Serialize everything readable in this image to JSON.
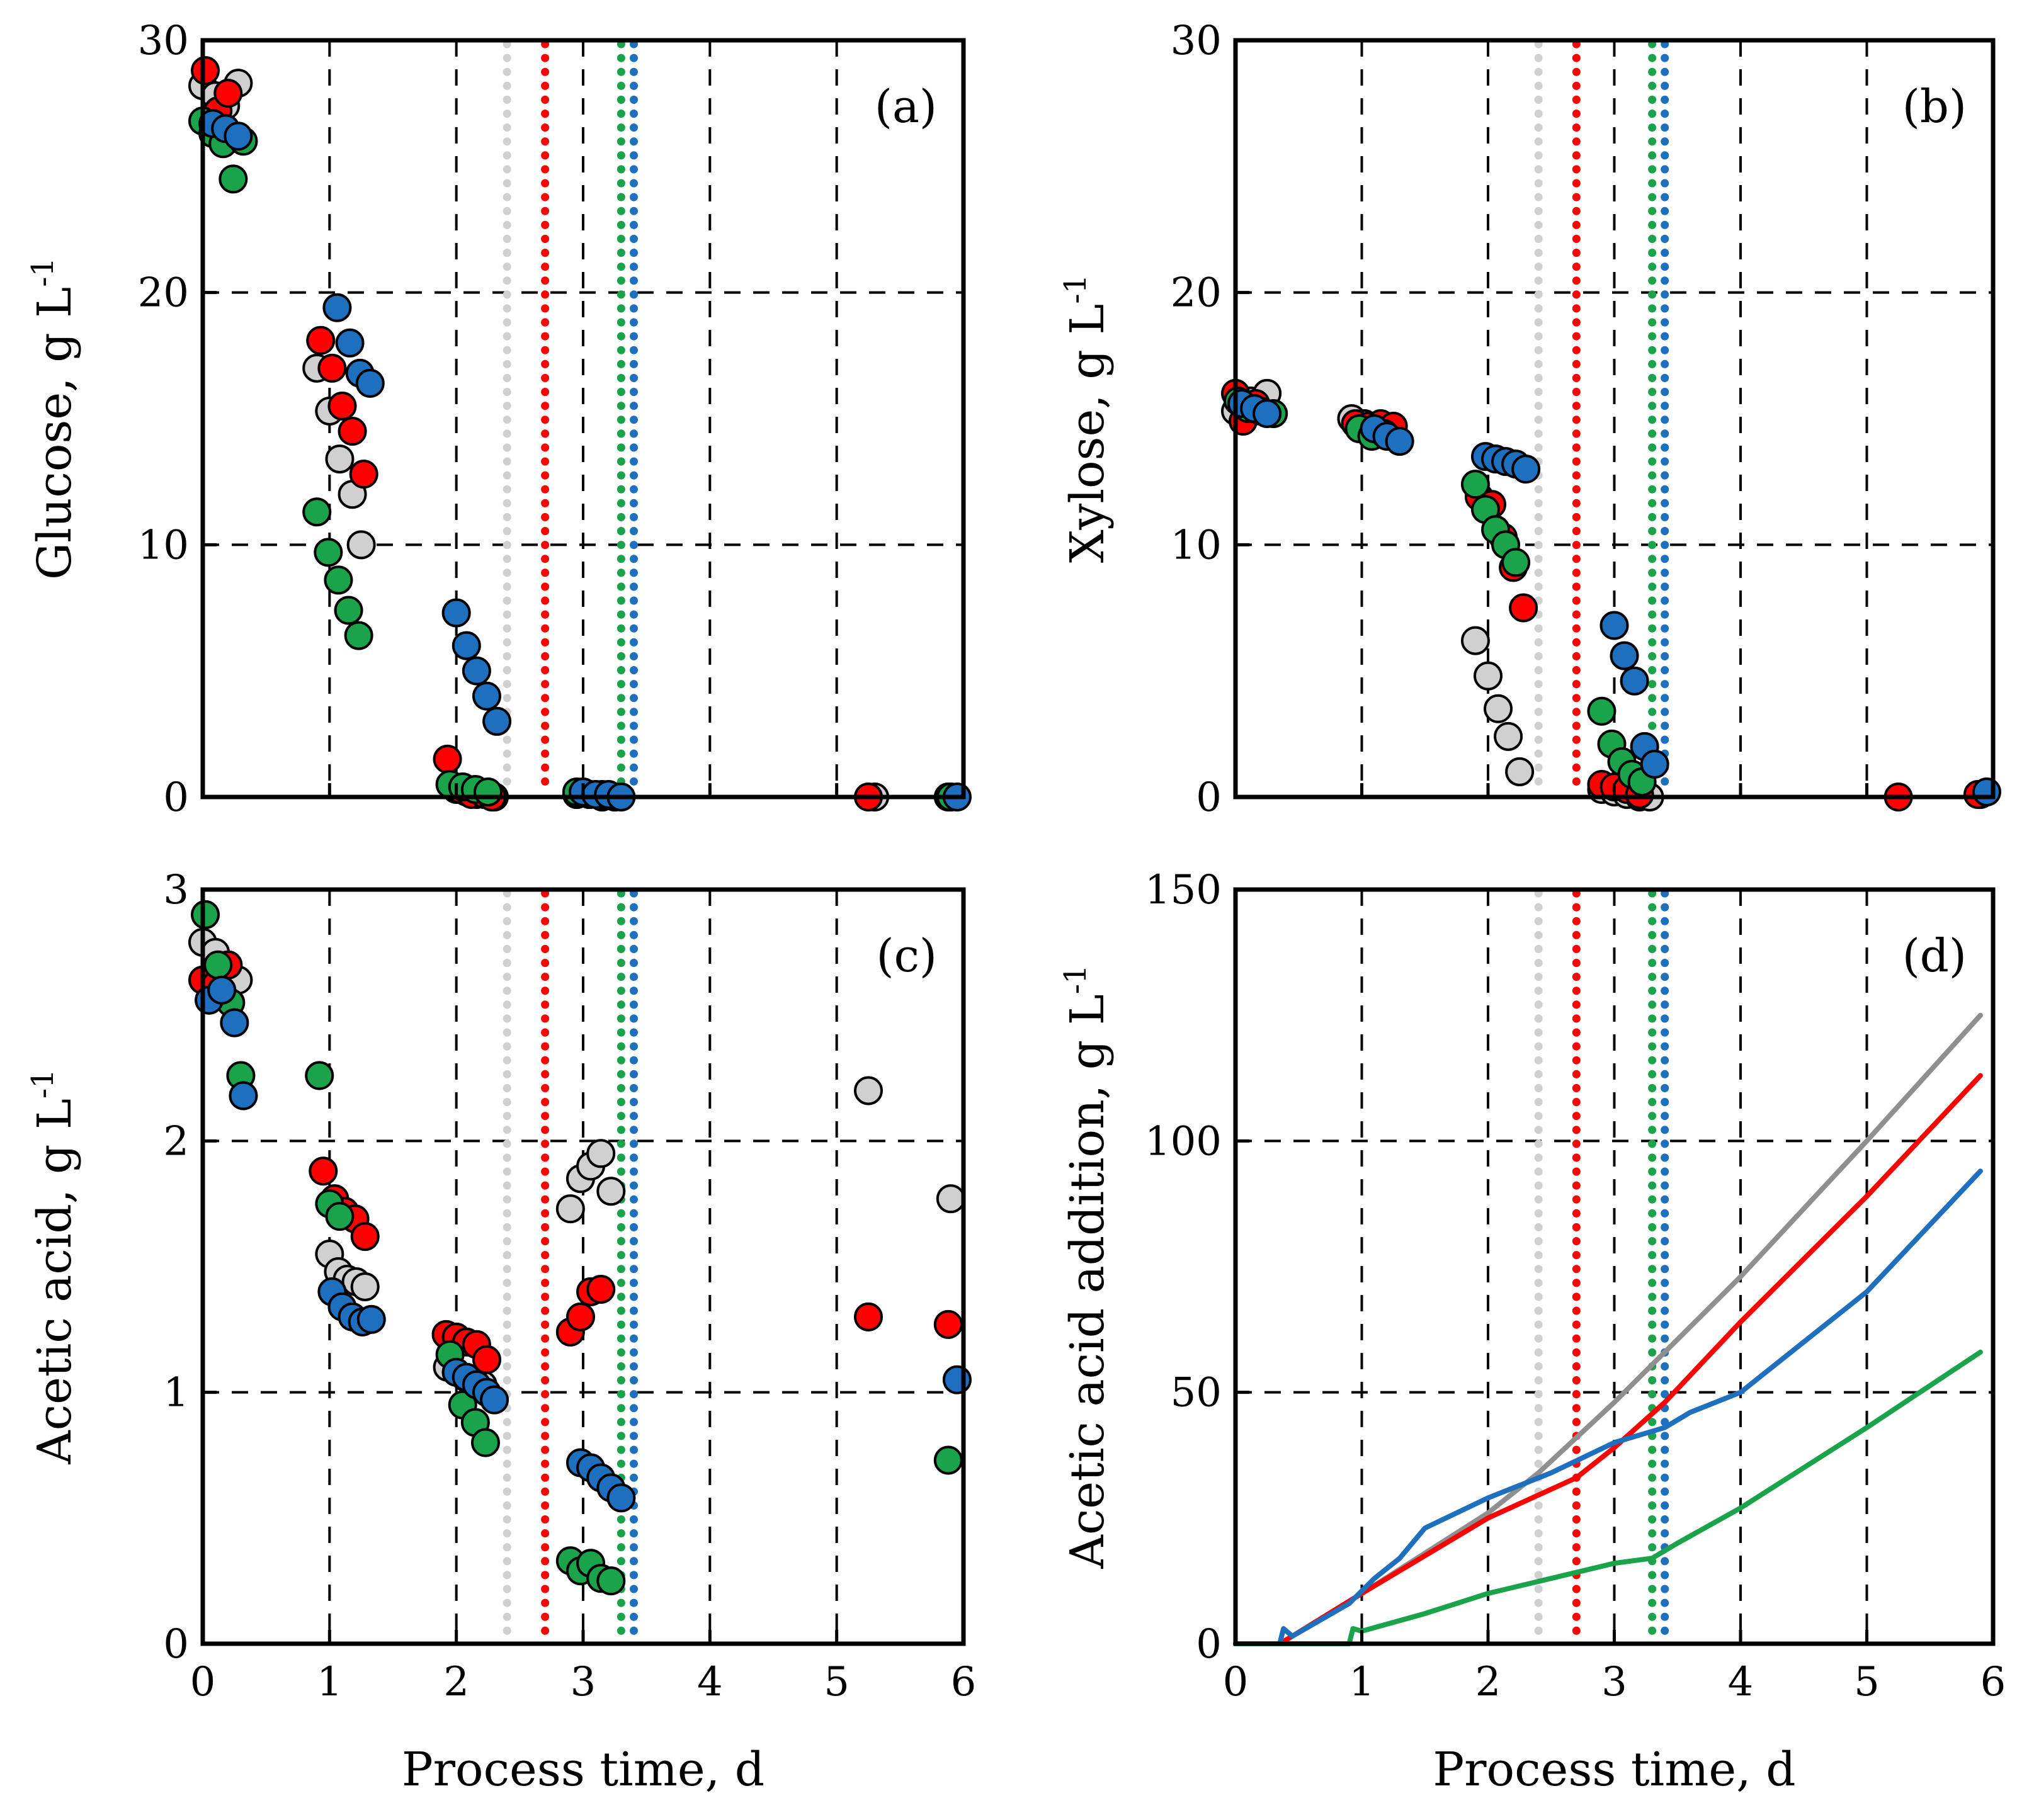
{
  "figure": {
    "colors": {
      "gray_marker": "#d0d0d0",
      "gray_line": "#8f8f8f",
      "red": "#ff0000",
      "green": "#1aa34a",
      "blue": "#1f6fbf"
    }
  },
  "chart_data": [
    {
      "type": "scatter",
      "panel": "(a)",
      "xlabel": "",
      "ylabel": "Glucose, g L",
      "ylabel_sup": "-1",
      "xlim": [
        0,
        6
      ],
      "ylim": [
        0,
        30
      ],
      "xticks": [
        0,
        1,
        2,
        3,
        4,
        5,
        6
      ],
      "yticks": [
        0,
        10,
        20,
        30
      ],
      "show_xtick_labels": false,
      "grid": "dashed",
      "vlines": [
        {
          "x": 2.4,
          "color": "gray"
        },
        {
          "x": 2.7,
          "color": "red"
        },
        {
          "x": 3.3,
          "color": "green"
        },
        {
          "x": 3.4,
          "color": "blue"
        }
      ],
      "series": [
        {
          "name": "gray",
          "color": "gray",
          "x": [
            0.0,
            0.1,
            0.18,
            0.28,
            0.9,
            1.0,
            1.08,
            1.18,
            1.25,
            2.0,
            2.08,
            2.16,
            2.24,
            2.3,
            2.95,
            3.05,
            3.15,
            3.25,
            5.3,
            5.9
          ],
          "y": [
            28.2,
            27.8,
            27.4,
            28.3,
            17.0,
            15.3,
            13.4,
            12.0,
            10.0,
            0.3,
            0.2,
            0.1,
            0.1,
            0.0,
            0.1,
            0.1,
            0.0,
            0.0,
            0.0,
            0.0
          ]
        },
        {
          "name": "red",
          "color": "red",
          "x": [
            0.02,
            0.12,
            0.2,
            0.93,
            1.02,
            1.1,
            1.18,
            1.27,
            1.93,
            2.03,
            2.12,
            2.22,
            2.28,
            2.95,
            3.05,
            3.15,
            5.25,
            5.88
          ],
          "y": [
            28.8,
            27.2,
            27.9,
            18.1,
            17.0,
            15.5,
            14.5,
            12.8,
            1.5,
            0.3,
            0.1,
            0.1,
            0.0,
            0.1,
            0.1,
            0.0,
            0.0,
            0.0
          ]
        },
        {
          "name": "green",
          "color": "green",
          "x": [
            0.0,
            0.08,
            0.16,
            0.24,
            0.32,
            0.9,
            0.99,
            1.07,
            1.15,
            1.23,
            1.95,
            2.05,
            2.15,
            2.25,
            2.95,
            3.05,
            3.15,
            3.25,
            5.9
          ],
          "y": [
            26.8,
            26.3,
            25.9,
            24.5,
            26.0,
            11.3,
            9.7,
            8.6,
            7.4,
            6.4,
            0.5,
            0.4,
            0.3,
            0.2,
            0.2,
            0.1,
            0.1,
            0.0,
            0.0
          ]
        },
        {
          "name": "blue",
          "color": "blue",
          "x": [
            0.08,
            0.18,
            0.28,
            1.06,
            1.16,
            1.24,
            1.32,
            2.0,
            2.08,
            2.16,
            2.24,
            2.32,
            3.0,
            3.1,
            3.2,
            3.3,
            5.95
          ],
          "y": [
            26.7,
            26.5,
            26.2,
            19.4,
            18.0,
            16.8,
            16.4,
            7.3,
            6.0,
            5.0,
            4.0,
            3.0,
            0.2,
            0.1,
            0.1,
            0.0,
            0.0
          ]
        }
      ]
    },
    {
      "type": "scatter",
      "panel": "(b)",
      "xlabel": "",
      "ylabel": "Xylose, g L",
      "ylabel_sup": "-1",
      "xlim": [
        0,
        6
      ],
      "ylim": [
        0,
        30
      ],
      "xticks": [
        0,
        1,
        2,
        3,
        4,
        5,
        6
      ],
      "yticks": [
        0,
        10,
        20,
        30
      ],
      "show_xtick_labels": false,
      "grid": "dashed",
      "vlines": [
        {
          "x": 2.4,
          "color": "gray"
        },
        {
          "x": 2.7,
          "color": "red"
        },
        {
          "x": 3.3,
          "color": "green"
        },
        {
          "x": 3.4,
          "color": "blue"
        }
      ],
      "series": [
        {
          "name": "gray",
          "color": "gray",
          "x": [
            0.0,
            0.12,
            0.25,
            0.92,
            1.02,
            1.12,
            1.22,
            1.9,
            2.0,
            2.08,
            2.16,
            2.25,
            2.9,
            3.0,
            3.1,
            3.2,
            3.28,
            5.9
          ],
          "y": [
            15.3,
            15.7,
            16.0,
            15.0,
            14.8,
            14.6,
            14.5,
            6.2,
            4.8,
            3.5,
            2.4,
            1.0,
            0.3,
            0.2,
            0.1,
            0.0,
            0.0,
            0.1
          ]
        },
        {
          "name": "red",
          "color": "red",
          "x": [
            0.0,
            0.06,
            0.16,
            0.95,
            1.05,
            1.15,
            1.25,
            1.93,
            2.03,
            2.12,
            2.2,
            2.28,
            2.9,
            3.0,
            3.1,
            3.2,
            5.25,
            5.88
          ],
          "y": [
            16.0,
            14.9,
            15.6,
            14.8,
            14.7,
            14.8,
            14.7,
            11.9,
            11.6,
            10.3,
            9.1,
            7.5,
            0.5,
            0.4,
            0.3,
            0.1,
            0.0,
            0.1
          ]
        },
        {
          "name": "green",
          "color": "green",
          "x": [
            0.02,
            0.1,
            0.2,
            0.3,
            0.98,
            1.08,
            1.18,
            1.9,
            1.98,
            2.06,
            2.14,
            2.22,
            2.9,
            2.98,
            3.06,
            3.14,
            3.22
          ],
          "y": [
            15.7,
            15.4,
            15.3,
            15.2,
            14.6,
            14.3,
            14.4,
            12.4,
            11.4,
            10.6,
            10.0,
            9.3,
            3.4,
            2.1,
            1.4,
            0.9,
            0.6
          ]
        },
        {
          "name": "blue",
          "color": "blue",
          "x": [
            0.05,
            0.15,
            0.25,
            1.1,
            1.2,
            1.3,
            1.98,
            2.06,
            2.14,
            2.22,
            2.3,
            3.0,
            3.08,
            3.16,
            3.24,
            3.32,
            5.95
          ],
          "y": [
            15.6,
            15.4,
            15.2,
            14.6,
            14.3,
            14.1,
            13.5,
            13.4,
            13.3,
            13.2,
            13.0,
            6.8,
            5.6,
            4.6,
            2.0,
            1.3,
            0.2
          ]
        }
      ]
    },
    {
      "type": "scatter",
      "panel": "(c)",
      "xlabel": "Process time, d",
      "ylabel": "Acetic acid, g L",
      "ylabel_sup": "-1",
      "xlim": [
        0,
        6
      ],
      "ylim": [
        0,
        3
      ],
      "xticks": [
        0,
        1,
        2,
        3,
        4,
        5,
        6
      ],
      "yticks": [
        0,
        1,
        2,
        3
      ],
      "show_xtick_labels": true,
      "grid": "dashed",
      "vlines": [
        {
          "x": 2.4,
          "color": "gray"
        },
        {
          "x": 2.7,
          "color": "red"
        },
        {
          "x": 3.3,
          "color": "green"
        },
        {
          "x": 3.4,
          "color": "blue"
        }
      ],
      "series": [
        {
          "name": "gray",
          "color": "gray",
          "x": [
            0.0,
            0.1,
            0.2,
            0.28,
            1.0,
            1.07,
            1.14,
            1.21,
            1.28,
            1.93,
            2.0,
            2.07,
            2.14,
            2.21,
            2.9,
            2.98,
            3.06,
            3.14,
            3.22,
            5.25,
            5.9
          ],
          "y": [
            2.79,
            2.75,
            2.7,
            2.64,
            1.55,
            1.48,
            1.45,
            1.44,
            1.42,
            1.1,
            1.08,
            1.06,
            1.05,
            1.03,
            1.73,
            1.85,
            1.9,
            1.95,
            1.8,
            2.2,
            1.77
          ]
        },
        {
          "name": "red",
          "color": "red",
          "x": [
            0.0,
            0.1,
            0.2,
            0.95,
            1.04,
            1.12,
            1.2,
            1.28,
            1.92,
            2.0,
            2.08,
            2.16,
            2.24,
            2.9,
            2.98,
            3.06,
            3.14,
            5.25,
            5.88
          ],
          "y": [
            2.64,
            2.62,
            2.7,
            1.88,
            1.77,
            1.72,
            1.69,
            1.62,
            1.23,
            1.22,
            1.2,
            1.19,
            1.13,
            1.24,
            1.3,
            1.4,
            1.41,
            1.3,
            1.27
          ]
        },
        {
          "name": "green",
          "color": "green",
          "x": [
            0.02,
            0.12,
            0.22,
            0.3,
            0.92,
            1.0,
            1.08,
            1.95,
            2.05,
            2.15,
            2.23,
            2.9,
            2.98,
            3.06,
            3.14,
            3.22,
            5.88
          ],
          "y": [
            2.9,
            2.7,
            2.55,
            2.26,
            2.26,
            1.75,
            1.7,
            1.15,
            0.95,
            0.88,
            0.8,
            0.33,
            0.29,
            0.32,
            0.26,
            0.25,
            0.73
          ]
        },
        {
          "name": "blue",
          "color": "blue",
          "x": [
            0.05,
            0.15,
            0.25,
            0.32,
            1.02,
            1.1,
            1.18,
            1.26,
            1.33,
            2.0,
            2.08,
            2.16,
            2.24,
            2.3,
            2.98,
            3.06,
            3.14,
            3.22,
            3.3,
            5.95
          ],
          "y": [
            2.56,
            2.6,
            2.47,
            2.18,
            1.4,
            1.34,
            1.3,
            1.28,
            1.29,
            1.08,
            1.06,
            1.03,
            1.0,
            0.97,
            0.72,
            0.7,
            0.66,
            0.62,
            0.58,
            1.05
          ]
        }
      ]
    },
    {
      "type": "line",
      "panel": "(d)",
      "xlabel": "Process time, d",
      "ylabel": "Acetic acid addition, g L",
      "ylabel_sup": "-1",
      "xlim": [
        0,
        6
      ],
      "ylim": [
        0,
        150
      ],
      "xticks": [
        0,
        1,
        2,
        3,
        4,
        5,
        6
      ],
      "yticks": [
        0,
        50,
        100,
        150
      ],
      "show_xtick_labels": true,
      "grid": "dashed",
      "vlines": [
        {
          "x": 2.4,
          "color": "gray"
        },
        {
          "x": 2.7,
          "color": "red"
        },
        {
          "x": 3.3,
          "color": "green"
        },
        {
          "x": 3.4,
          "color": "blue"
        }
      ],
      "series": [
        {
          "name": "gray",
          "color": "gray_line",
          "x": [
            0,
            0.35,
            0.45,
            1.0,
            2.0,
            2.4,
            3.0,
            3.4,
            4.0,
            5.0,
            5.9
          ],
          "y": [
            0,
            0,
            1.5,
            10,
            26,
            34,
            48,
            58,
            73,
            100,
            125
          ]
        },
        {
          "name": "red",
          "color": "red",
          "x": [
            0,
            0.35,
            0.45,
            1.0,
            2.0,
            2.7,
            3.0,
            3.4,
            4.0,
            5.0,
            5.9
          ],
          "y": [
            0,
            0,
            1.5,
            10,
            25,
            33,
            39,
            48,
            64,
            89,
            113
          ]
        },
        {
          "name": "blue",
          "color": "blue",
          "x": [
            0,
            0.35,
            0.38,
            0.45,
            0.9,
            1.1,
            1.3,
            1.5,
            2.0,
            2.5,
            3.0,
            3.4,
            3.6,
            4.0,
            5.0,
            5.9
          ],
          "y": [
            0,
            0,
            3,
            1.5,
            8,
            13,
            17,
            23,
            29,
            34,
            40,
            43,
            46,
            50,
            70,
            94
          ]
        },
        {
          "name": "green",
          "color": "green",
          "x": [
            0,
            0.9,
            0.93,
            1.0,
            1.5,
            2.0,
            2.5,
            3.0,
            3.3,
            3.5,
            4.0,
            5.0,
            5.9
          ],
          "y": [
            0,
            0,
            3,
            2.5,
            6,
            10,
            13,
            16,
            17,
            20,
            27,
            43,
            58
          ]
        }
      ]
    }
  ]
}
